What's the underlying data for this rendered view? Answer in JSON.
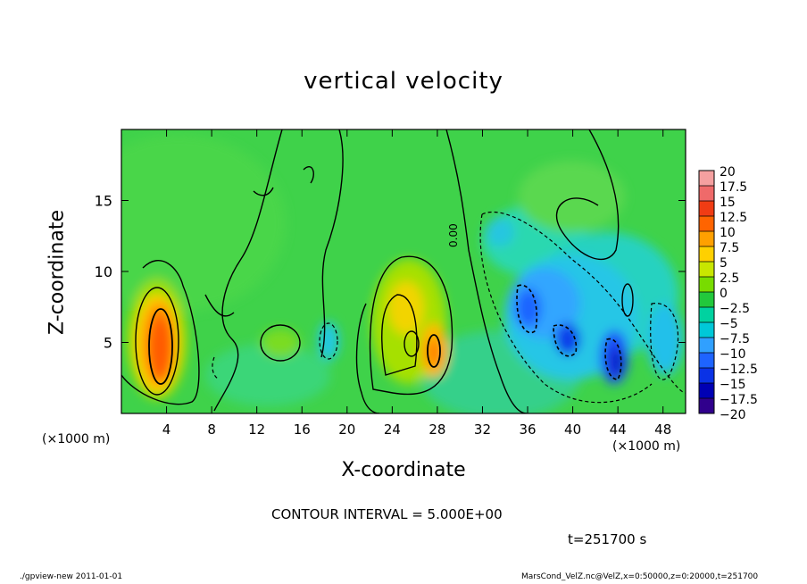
{
  "chart_data": {
    "type": "heatmap",
    "title": "vertical velocity",
    "xlabel": "X-coordinate",
    "ylabel": "Z-coordinate",
    "x_unit_label": "(×1000 m)",
    "x_unit_label_right": "(×1000 m)",
    "xlim": [
      0,
      50
    ],
    "ylim": [
      0,
      20
    ],
    "x_ticks": [
      4,
      8,
      12,
      16,
      20,
      24,
      28,
      32,
      36,
      40,
      44,
      48
    ],
    "y_ticks": [
      5,
      10,
      15
    ],
    "colorbar": {
      "levels": [
        "20",
        "17.5",
        "15",
        "12.5",
        "10",
        "7.5",
        "5",
        "2.5",
        "0",
        "−2.5",
        "−5",
        "−7.5",
        "−10",
        "−12.5",
        "−15",
        "−17.5",
        "−20"
      ],
      "colors": [
        "#f5a0a0",
        "#ef6a6a",
        "#f03c14",
        "#ff6400",
        "#ffa000",
        "#ffd000",
        "#c8e600",
        "#78dc00",
        "#22c83c",
        "#00d2a0",
        "#00c8d8",
        "#30a0ff",
        "#1e64ff",
        "#0a32e6",
        "#0000b4",
        "#30008c",
        "#6a1ab0"
      ]
    },
    "contour_interval_label": "CONTOUR INTERVAL = 5.000E+00",
    "contour_zero_label": "0.00",
    "features": [
      {
        "x": 3.8,
        "z": 5.0,
        "value": 13,
        "sign": "updraft"
      },
      {
        "x": 25.5,
        "z": 7.5,
        "value": 7,
        "sign": "updraft"
      },
      {
        "x": 27.5,
        "z": 4.5,
        "value": 9,
        "sign": "updraft"
      },
      {
        "x": 39.5,
        "z": 5.5,
        "value": -12,
        "sign": "downdraft"
      },
      {
        "x": 43.5,
        "z": 4.0,
        "value": -15,
        "sign": "downdraft"
      },
      {
        "x": 36.5,
        "z": 8.0,
        "value": -9,
        "sign": "downdraft"
      }
    ]
  },
  "time_label": "t=251700  s",
  "footer_left": "./gpview-new   2011-01-01",
  "footer_right": "MarsCond_VelZ.nc@VelZ,x=0:50000,z=0:20000,t=251700"
}
